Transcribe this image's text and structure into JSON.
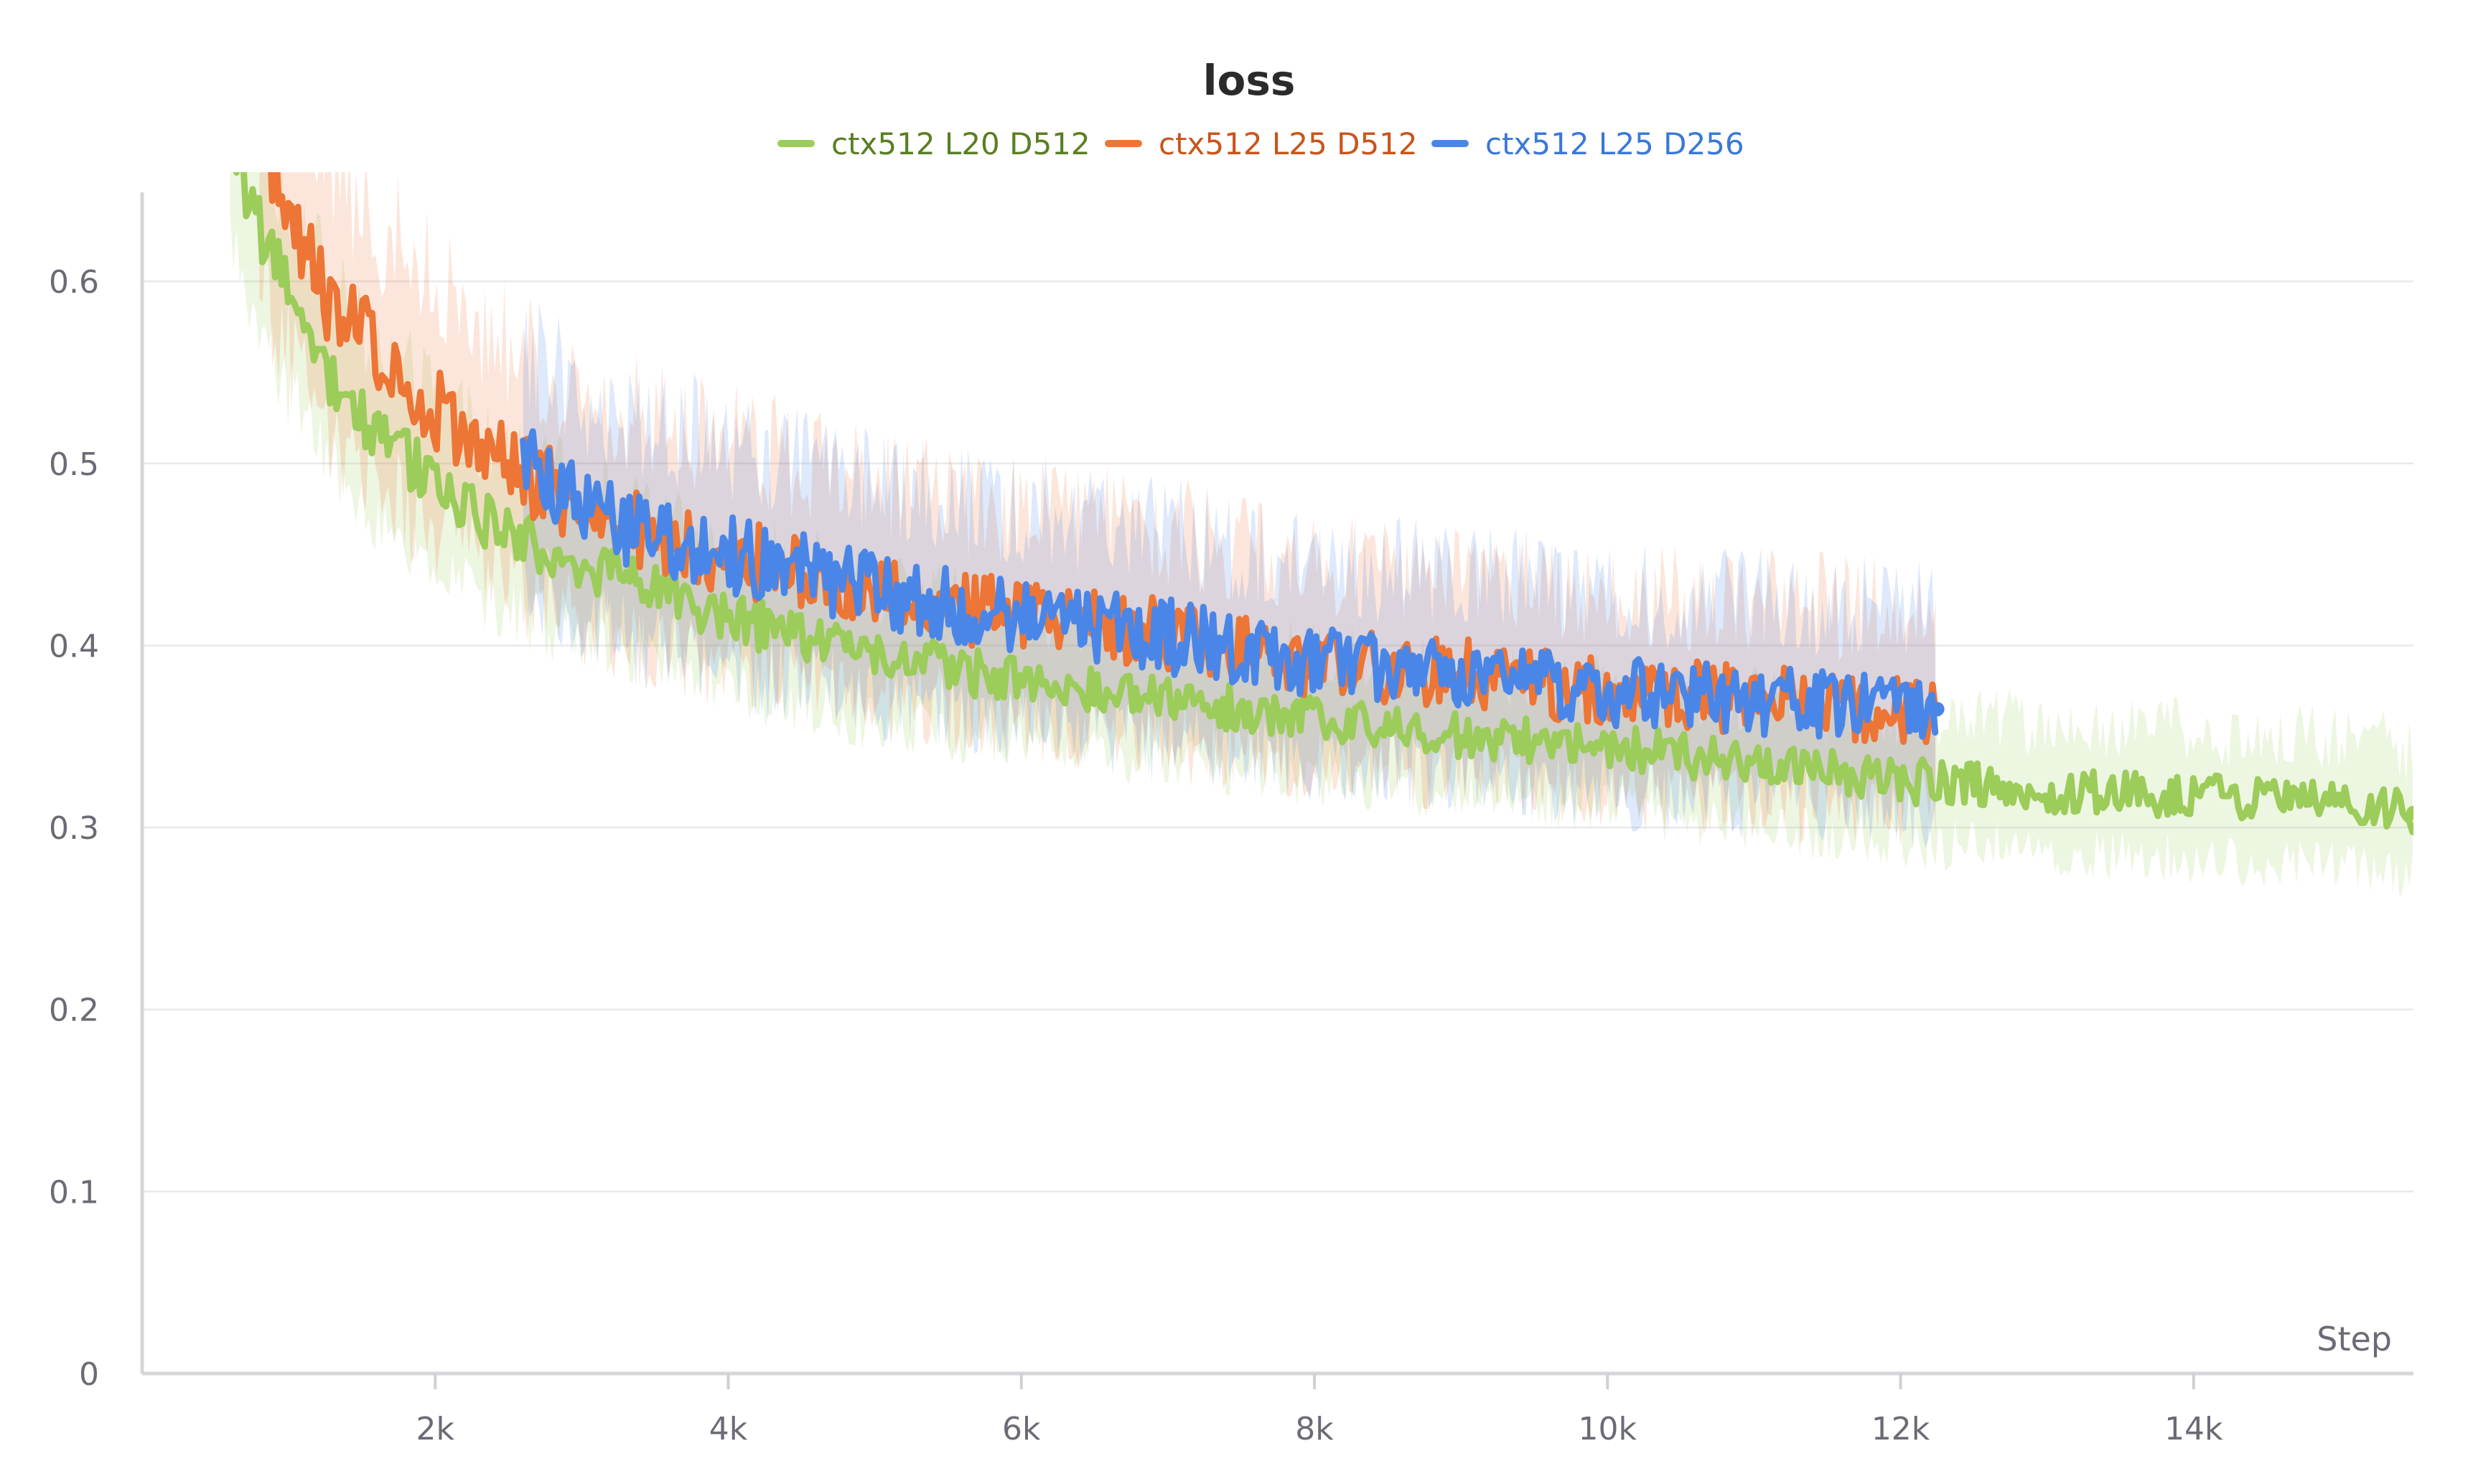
{
  "chart_data": {
    "type": "line",
    "title": "loss",
    "xlabel": "Step",
    "ylabel": "",
    "xlim": [
      0,
      15500
    ],
    "ylim": [
      0,
      0.66
    ],
    "x_ticks": [
      2000,
      4000,
      6000,
      8000,
      10000,
      12000,
      14000
    ],
    "x_tick_labels": [
      "2k",
      "4k",
      "6k",
      "8k",
      "10k",
      "12k",
      "14k"
    ],
    "y_ticks": [
      0,
      0.1,
      0.2,
      0.3,
      0.4,
      0.5,
      0.6
    ],
    "y_tick_labels": [
      "0",
      "0.1",
      "0.2",
      "0.3",
      "0.4",
      "0.5",
      "0.6"
    ],
    "grid": true,
    "legend_position": "top-center",
    "series": [
      {
        "name": "ctx512 L20 D512",
        "color": "#9ccc5a",
        "label_color": "#5a7e22",
        "x": [
          600,
          800,
          1000,
          1200,
          1500,
          2000,
          2500,
          3000,
          3500,
          4000,
          5000,
          6000,
          7000,
          8000,
          9000,
          10000,
          11000,
          12000,
          12500,
          13000,
          14000,
          15000,
          15500
        ],
        "y": [
          0.68,
          0.63,
          0.59,
          0.56,
          0.525,
          0.49,
          0.46,
          0.445,
          0.43,
          0.415,
          0.395,
          0.38,
          0.37,
          0.36,
          0.35,
          0.345,
          0.335,
          0.325,
          0.325,
          0.32,
          0.318,
          0.314,
          0.308
        ],
        "band": [
          0.07,
          0.07,
          0.065,
          0.065,
          0.06,
          0.06,
          0.055,
          0.055,
          0.05,
          0.05,
          0.05,
          0.045,
          0.045,
          0.045,
          0.045,
          0.045,
          0.045,
          0.045,
          0.045,
          0.045,
          0.045,
          0.045,
          0.045
        ]
      },
      {
        "name": "ctx512 L25 D512",
        "color": "#ed7535",
        "label_color": "#c9541b",
        "x": [
          800,
          1000,
          1200,
          1500,
          2000,
          2500,
          3000,
          3500,
          4000,
          5000,
          6000,
          7000,
          8000,
          9000,
          10000,
          11000,
          12000,
          12250
        ],
        "y": [
          0.68,
          0.64,
          0.6,
          0.57,
          0.53,
          0.5,
          0.475,
          0.46,
          0.45,
          0.43,
          0.415,
          0.405,
          0.39,
          0.385,
          0.375,
          0.37,
          0.365,
          0.365
        ],
        "band": [
          0.1,
          0.1,
          0.095,
          0.09,
          0.09,
          0.085,
          0.08,
          0.08,
          0.08,
          0.075,
          0.075,
          0.075,
          0.07,
          0.07,
          0.07,
          0.07,
          0.07,
          0.07
        ]
      },
      {
        "name": "ctx512 L25 D256",
        "color": "#4a86e8",
        "label_color": "#3b78d8",
        "x": [
          2600,
          3000,
          3500,
          4000,
          5000,
          6000,
          7000,
          8000,
          9000,
          10000,
          11000,
          12000,
          12250
        ],
        "y": [
          0.5,
          0.475,
          0.46,
          0.45,
          0.43,
          0.415,
          0.405,
          0.39,
          0.385,
          0.375,
          0.37,
          0.365,
          0.365
        ],
        "band": [
          0.08,
          0.08,
          0.08,
          0.08,
          0.075,
          0.075,
          0.075,
          0.07,
          0.07,
          0.07,
          0.07,
          0.07,
          0.07
        ]
      }
    ]
  }
}
